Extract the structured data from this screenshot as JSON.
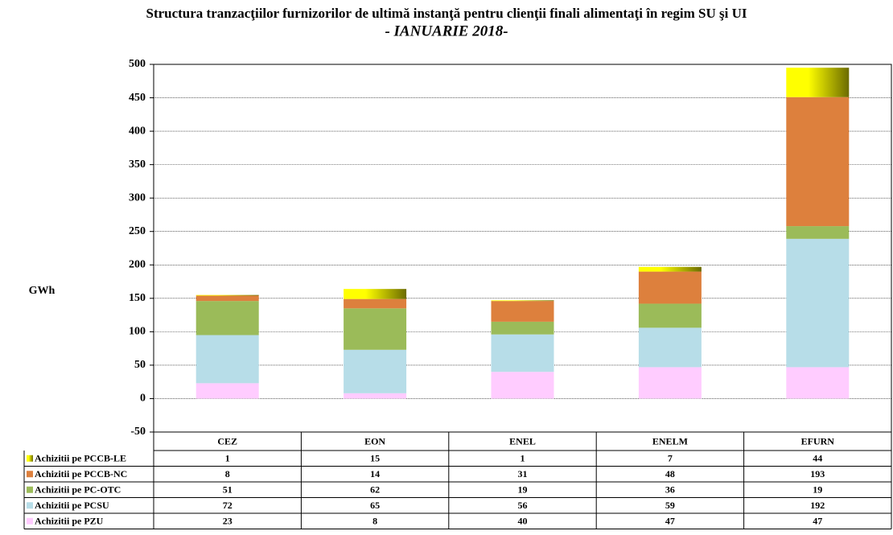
{
  "chart_data": {
    "type": "stacked-bar",
    "title": "Structura tranzacţiilor furnizorilor de ultimă instanţă pentru clienţii finali alimentaţi în regim SU şi UI",
    "subtitle": "- IANUARIE 2018-",
    "y_label": "GWh",
    "categories": [
      "CEZ",
      "EON",
      "ENEL",
      "ENELM",
      "EFURN"
    ],
    "series": [
      {
        "name": "Achizitii pe PZU",
        "color": "#ffccff",
        "values": [
          23,
          8,
          40,
          47,
          47
        ]
      },
      {
        "name": "Achizitii pe PCSU",
        "color": "#b7dde8",
        "values": [
          72,
          65,
          56,
          59,
          192
        ]
      },
      {
        "name": "Achizitii pe PC-OTC",
        "color": "#9bbb59",
        "values": [
          51,
          62,
          19,
          36,
          19
        ]
      },
      {
        "name": "Achizitii pe PCCB-NC",
        "color": "#dd803d",
        "values": [
          8,
          14,
          31,
          48,
          193
        ]
      },
      {
        "name": "Achizitii pe PCCB-LE",
        "color": "#ffff00",
        "values": [
          1,
          15,
          1,
          7,
          44
        ]
      }
    ],
    "ylim": [
      -50,
      500
    ],
    "yticks": [
      -50,
      0,
      50,
      100,
      150,
      200,
      250,
      300,
      350,
      400,
      450,
      500
    ],
    "grid": true
  }
}
